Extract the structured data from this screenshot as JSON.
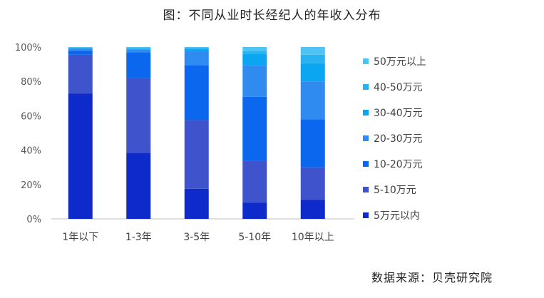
{
  "figure": {
    "title": "图：不同从业时长经纪人的年收入分布",
    "source": "数据来源：贝壳研究院"
  },
  "chart_data": {
    "type": "bar",
    "stacked": true,
    "title": "图：不同从业时长经纪人的年收入分布",
    "categories": [
      "1年以下",
      "1-3年",
      "3-5年",
      "5-10年",
      "10年以上"
    ],
    "ylim": [
      0,
      100
    ],
    "yticks": [
      "0%",
      "20%",
      "40%",
      "60%",
      "80%",
      "100%"
    ],
    "grid": false,
    "legend_position": "right",
    "series": [
      {
        "name": "5万元以内",
        "color": "#0E2ACB",
        "values": [
          73,
          38.5,
          17.5,
          9.5,
          11
        ]
      },
      {
        "name": "5-10万元",
        "color": "#3F54CC",
        "values": [
          22.5,
          43.5,
          40,
          24.5,
          19
        ]
      },
      {
        "name": "10-20万元",
        "color": "#0A67EE",
        "values": [
          2.5,
          15,
          32,
          37,
          28
        ]
      },
      {
        "name": "20-30万元",
        "color": "#2F8BF0",
        "values": [
          1,
          1.5,
          8,
          18.5,
          22
        ]
      },
      {
        "name": "30-40万元",
        "color": "#0AA6F2",
        "values": [
          0.5,
          0.5,
          1.5,
          6.5,
          10.5
        ]
      },
      {
        "name": "40-50万元",
        "color": "#29B2F1",
        "values": [
          0.25,
          0.5,
          0.5,
          1.5,
          5
        ]
      },
      {
        "name": "50万元以上",
        "color": "#4FC3F3",
        "values": [
          0.25,
          0.5,
          0.5,
          2.5,
          4.5
        ]
      }
    ]
  }
}
